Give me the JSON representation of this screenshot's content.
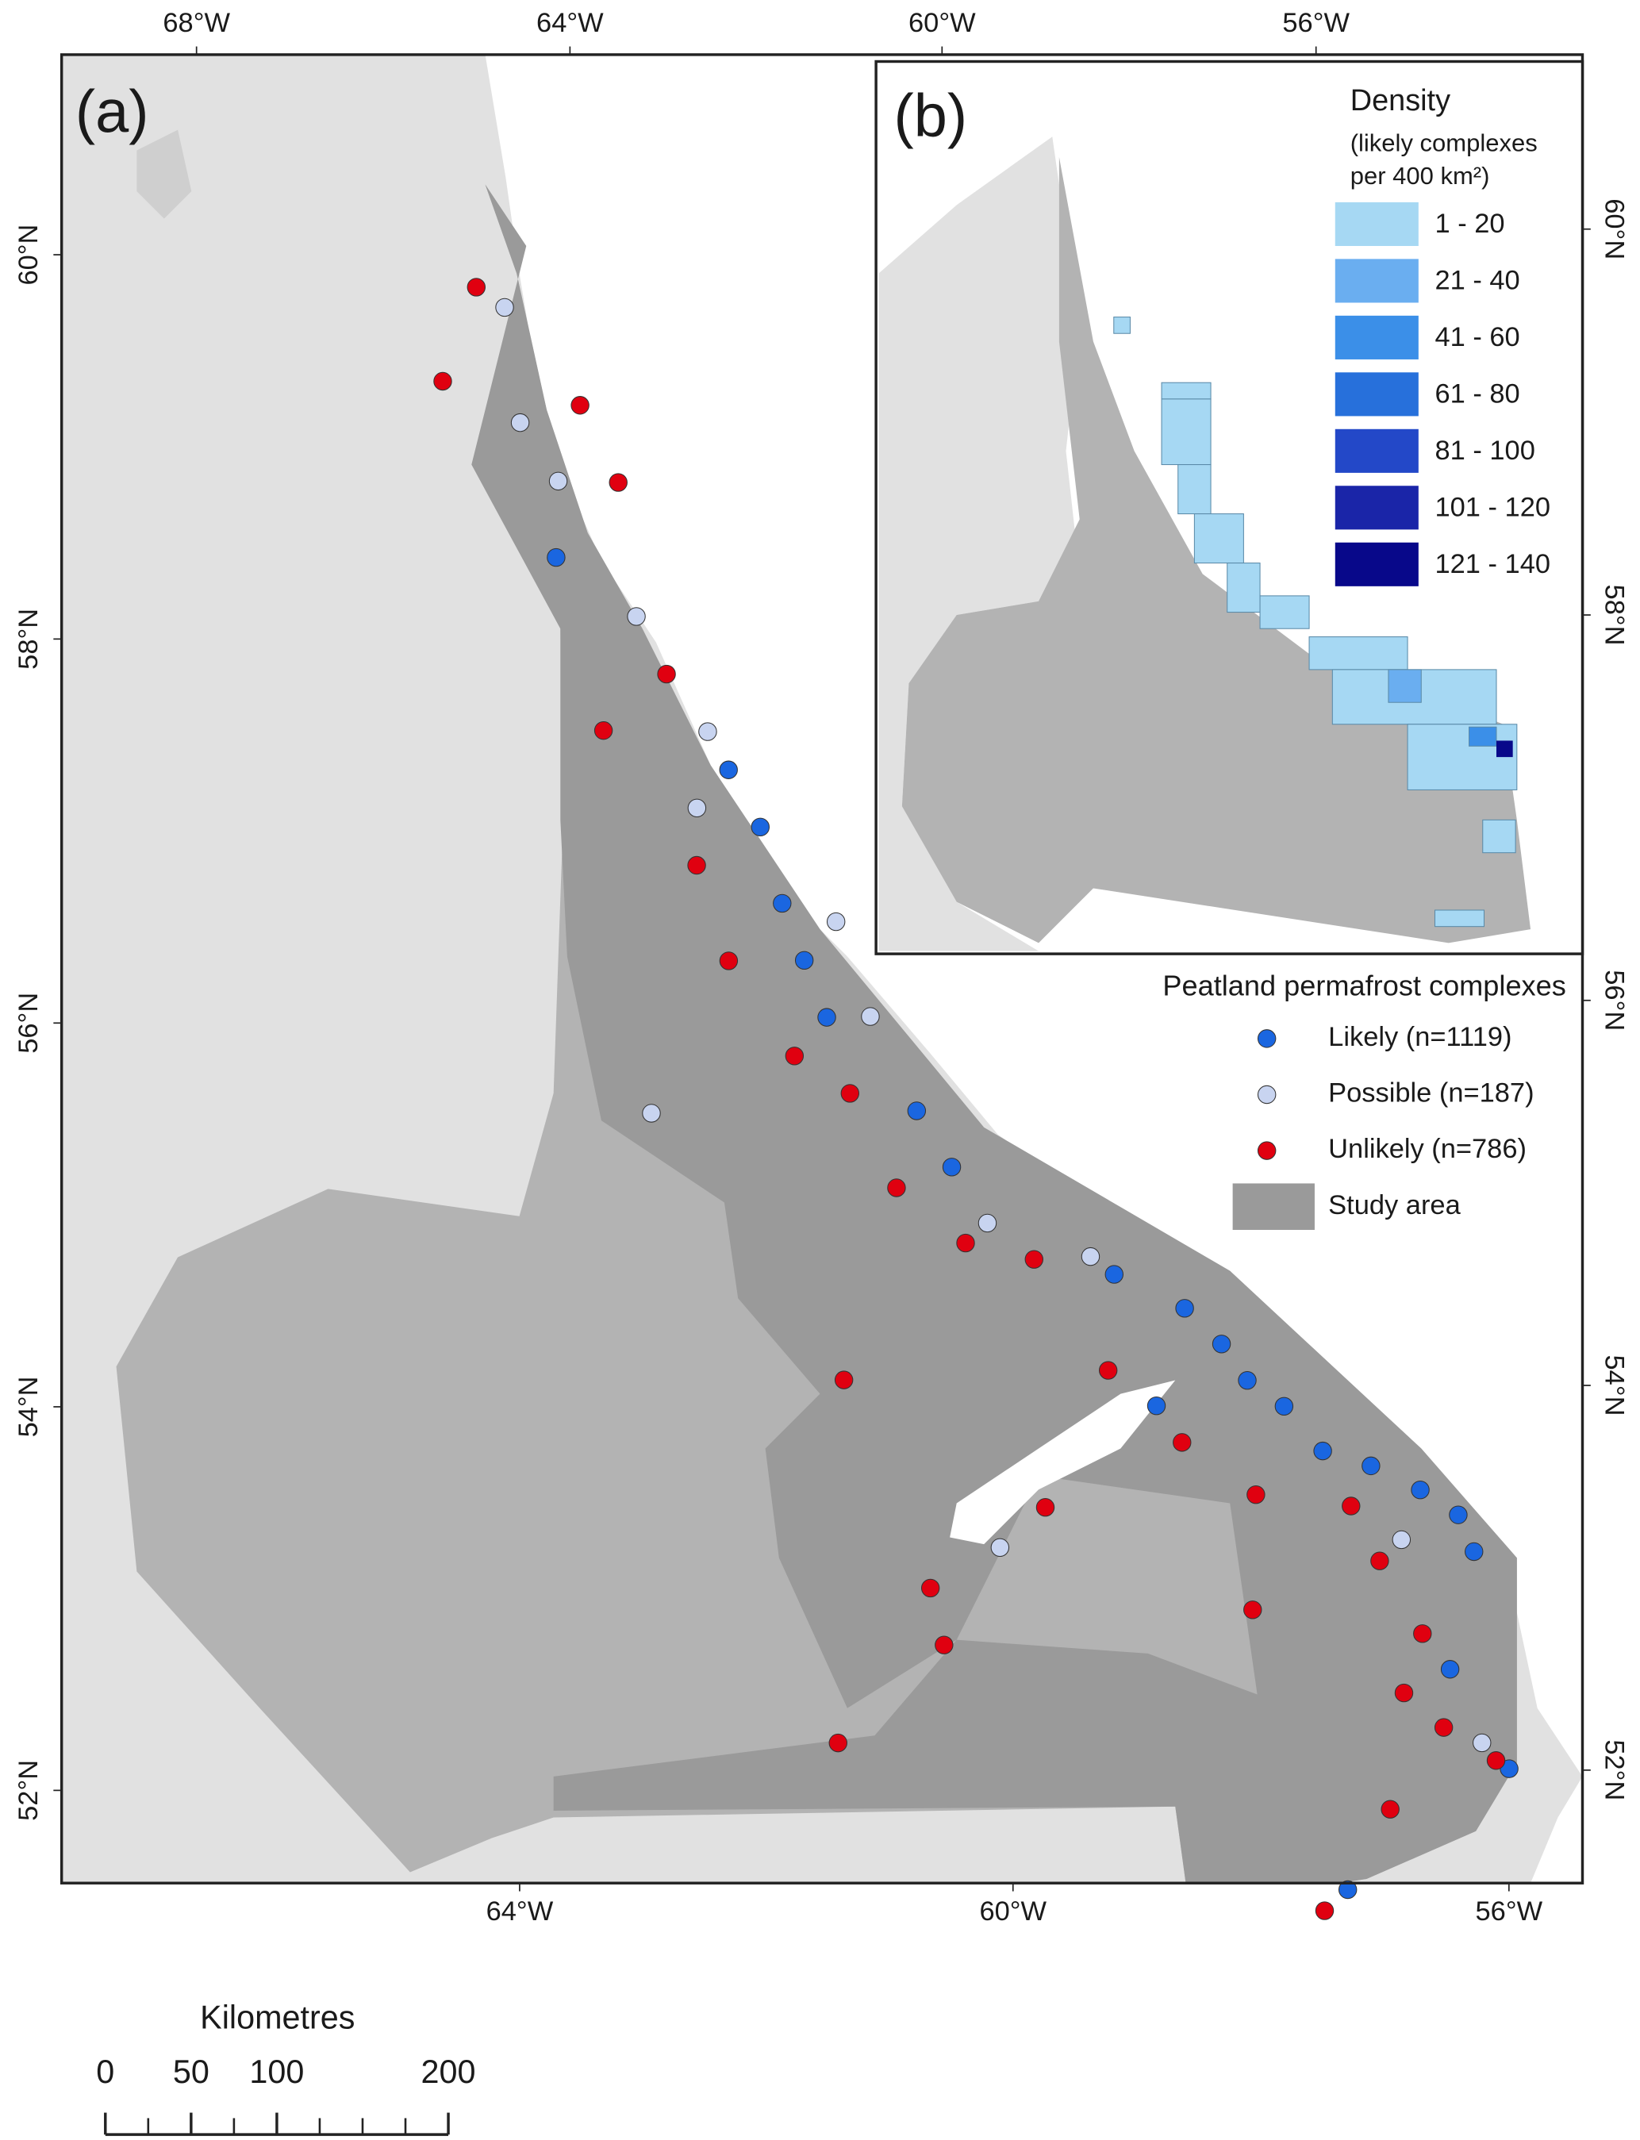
{
  "map": {
    "panel_a": "(a)",
    "panel_b": "(b)",
    "lon_ticks_top": [
      {
        "value": -68,
        "label": "68°W"
      },
      {
        "value": -64,
        "label": "64°W"
      },
      {
        "value": -60,
        "label": "60°W"
      },
      {
        "value": -56,
        "label": "56°W"
      }
    ],
    "lon_ticks_bottom": [
      {
        "value": -64,
        "label": "64°W"
      },
      {
        "value": -60,
        "label": "60°W"
      },
      {
        "value": -56,
        "label": "56°W"
      }
    ],
    "lat_ticks_left": [
      {
        "value": 60,
        "label": "60°N"
      },
      {
        "value": 58,
        "label": "58°N"
      },
      {
        "value": 56,
        "label": "56°N"
      },
      {
        "value": 54,
        "label": "54°N"
      },
      {
        "value": 52,
        "label": "52°N"
      }
    ],
    "lat_ticks_right": [
      {
        "value": 60,
        "label": "60°N"
      },
      {
        "value": 58,
        "label": "58°N"
      },
      {
        "value": 56,
        "label": "56°N"
      },
      {
        "value": 54,
        "label": "54°N"
      },
      {
        "value": 52,
        "label": "52°N"
      }
    ],
    "density_legend": {
      "title": "Density",
      "subtitle": [
        "(likely complexes",
        "per 400 km²)"
      ],
      "classes": [
        {
          "label": "1 - 20",
          "color": "#a6d8f3"
        },
        {
          "label": "21 - 40",
          "color": "#6aaef0"
        },
        {
          "label": "41 - 60",
          "color": "#3b8fe8"
        },
        {
          "label": "61 - 80",
          "color": "#2770db"
        },
        {
          "label": "81 - 100",
          "color": "#2348c8"
        },
        {
          "label": "101 - 120",
          "color": "#1a25a8"
        },
        {
          "label": "121 - 140",
          "color": "#08088a"
        }
      ]
    },
    "points_legend": {
      "title": "Peatland permafrost complexes",
      "series": [
        {
          "name": "Likely (n=1119)",
          "color": "#1a66e0",
          "points": [
            [
              -64.0,
              58.6
            ],
            [
              -62.3,
              57.5
            ],
            [
              -62.0,
              57.2
            ],
            [
              -61.8,
              56.8
            ],
            [
              -61.6,
              56.5
            ],
            [
              -61.4,
              56.2
            ],
            [
              -60.6,
              55.7
            ],
            [
              -60.3,
              55.4
            ],
            [
              -58.9,
              54.8
            ],
            [
              -58.3,
              54.6
            ],
            [
              -58.0,
              54.4
            ],
            [
              -57.8,
              54.2
            ],
            [
              -57.5,
              54.05
            ],
            [
              -57.2,
              53.8
            ],
            [
              -56.8,
              53.7
            ],
            [
              -56.4,
              53.55
            ],
            [
              -56.1,
              53.4
            ],
            [
              -56.0,
              53.2
            ],
            [
              -56.3,
              52.6
            ],
            [
              -55.9,
              52.05
            ],
            [
              -57.3,
              51.5
            ],
            [
              -58.6,
              54.1
            ]
          ]
        },
        {
          "name": "Possible (n=187)",
          "color": "#c8d4f0",
          "points": [
            [
              -64.6,
              59.9
            ],
            [
              -64.4,
              59.3
            ],
            [
              -64.0,
              59.0
            ],
            [
              -63.2,
              58.3
            ],
            [
              -62.5,
              57.7
            ],
            [
              -62.6,
              57.3
            ],
            [
              -61.3,
              56.7
            ],
            [
              -61.0,
              56.2
            ],
            [
              -63.0,
              55.7
            ],
            [
              -60.0,
              55.1
            ],
            [
              -59.1,
              54.9
            ],
            [
              -60.0,
              53.4
            ],
            [
              -56.6,
              53.3
            ],
            [
              -56.1,
              52.2
            ]
          ]
        },
        {
          "name": "Unlikely (n=786)",
          "color": "#e00010",
          "points": [
            [
              -64.9,
              60.0
            ],
            [
              -65.2,
              59.5
            ],
            [
              -63.8,
              59.4
            ],
            [
              -63.4,
              59.0
            ],
            [
              -62.9,
              58.0
            ],
            [
              -63.5,
              57.7
            ],
            [
              -62.6,
              57.0
            ],
            [
              -62.3,
              56.5
            ],
            [
              -61.7,
              56.0
            ],
            [
              -61.2,
              55.8
            ],
            [
              -60.8,
              55.3
            ],
            [
              -60.2,
              55.0
            ],
            [
              -59.6,
              54.9
            ],
            [
              -61.3,
              54.3
            ],
            [
              -59.0,
              54.3
            ],
            [
              -58.4,
              53.9
            ],
            [
              -59.6,
              53.6
            ],
            [
              -60.6,
              53.2
            ],
            [
              -60.5,
              52.9
            ],
            [
              -61.4,
              52.4
            ],
            [
              -57.9,
              53.0
            ],
            [
              -57.0,
              53.5
            ],
            [
              -56.8,
              53.2
            ],
            [
              -56.5,
              52.8
            ],
            [
              -56.7,
              52.5
            ],
            [
              -56.4,
              52.3
            ],
            [
              -56.9,
              51.9
            ],
            [
              -57.5,
              51.4
            ],
            [
              -56.0,
              52.1
            ],
            [
              -57.8,
              53.6
            ]
          ]
        }
      ]
    },
    "study_area": {
      "label": "Study area",
      "color": "#9a9a9a"
    },
    "scale": {
      "title": "Kilometres",
      "ticks": [
        0,
        50,
        100,
        200
      ]
    }
  }
}
